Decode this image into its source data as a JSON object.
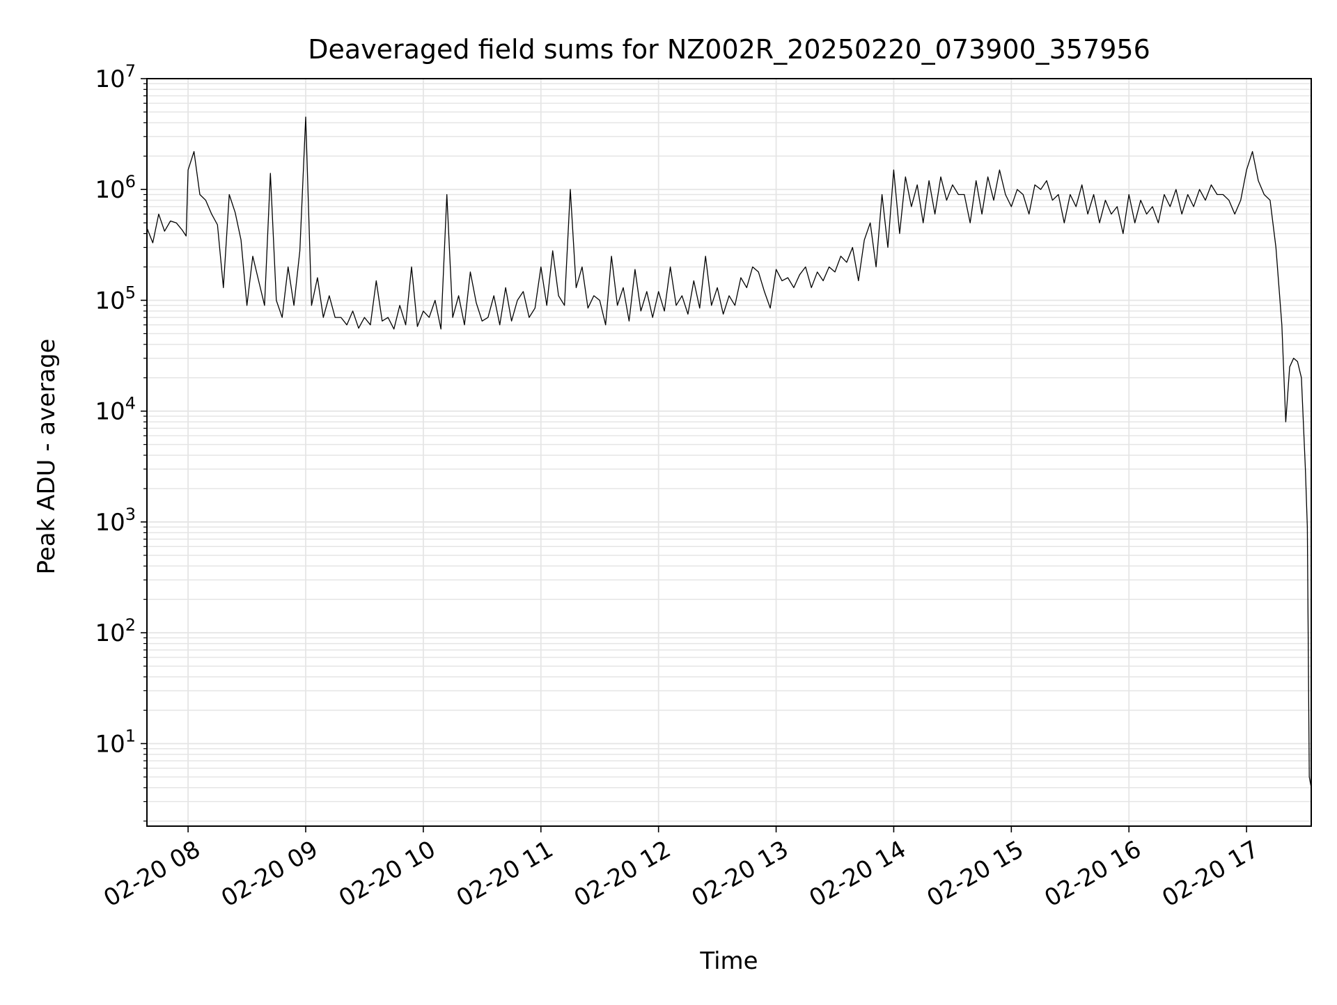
{
  "chart_data": {
    "type": "line",
    "title": "Deaveraged field sums for NZ002R_20250220_073900_357956",
    "xlabel": "Time",
    "ylabel": "Peak ADU - average",
    "y_scale": "log",
    "xlim": [
      "2025-02-20 07:39",
      "2025-02-20 17:33"
    ],
    "ylim": [
      1.8,
      10000000
    ],
    "x_ticks": [
      {
        "value": "2025-02-20 08:00",
        "label": "02-20 08"
      },
      {
        "value": "2025-02-20 09:00",
        "label": "02-20 09"
      },
      {
        "value": "2025-02-20 10:00",
        "label": "02-20 10"
      },
      {
        "value": "2025-02-20 11:00",
        "label": "02-20 11"
      },
      {
        "value": "2025-02-20 12:00",
        "label": "02-20 12"
      },
      {
        "value": "2025-02-20 13:00",
        "label": "02-20 13"
      },
      {
        "value": "2025-02-20 14:00",
        "label": "02-20 14"
      },
      {
        "value": "2025-02-20 15:00",
        "label": "02-20 15"
      },
      {
        "value": "2025-02-20 16:00",
        "label": "02-20 16"
      },
      {
        "value": "2025-02-20 17:00",
        "label": "02-20 17"
      }
    ],
    "y_ticks": [
      {
        "value": 10,
        "base": "10",
        "exp": "1"
      },
      {
        "value": 100,
        "base": "10",
        "exp": "2"
      },
      {
        "value": 1000,
        "base": "10",
        "exp": "3"
      },
      {
        "value": 10000,
        "base": "10",
        "exp": "4"
      },
      {
        "value": 100000,
        "base": "10",
        "exp": "5"
      },
      {
        "value": 1000000,
        "base": "10",
        "exp": "6"
      },
      {
        "value": 10000000,
        "base": "10",
        "exp": "7"
      }
    ],
    "grid": true,
    "line_color": "#000000",
    "grid_color": "#e5e5e5",
    "series": [
      {
        "x": [
          "2025-02-20 07:39",
          "2025-02-20 07:42",
          "2025-02-20 07:45",
          "2025-02-20 07:48",
          "2025-02-20 07:51",
          "2025-02-20 07:54",
          "2025-02-20 07:57",
          "2025-02-20 07:59",
          "2025-02-20 08:00",
          "2025-02-20 08:03",
          "2025-02-20 08:06",
          "2025-02-20 08:09",
          "2025-02-20 08:12",
          "2025-02-20 08:15",
          "2025-02-20 08:18",
          "2025-02-20 08:21",
          "2025-02-20 08:24",
          "2025-02-20 08:27",
          "2025-02-20 08:30",
          "2025-02-20 08:33",
          "2025-02-20 08:36",
          "2025-02-20 08:39",
          "2025-02-20 08:42",
          "2025-02-20 08:45",
          "2025-02-20 08:48",
          "2025-02-20 08:51",
          "2025-02-20 08:54",
          "2025-02-20 08:57",
          "2025-02-20 09:00",
          "2025-02-20 09:03",
          "2025-02-20 09:06",
          "2025-02-20 09:09",
          "2025-02-20 09:12",
          "2025-02-20 09:15",
          "2025-02-20 09:18",
          "2025-02-20 09:21",
          "2025-02-20 09:24",
          "2025-02-20 09:27",
          "2025-02-20 09:30",
          "2025-02-20 09:33",
          "2025-02-20 09:36",
          "2025-02-20 09:39",
          "2025-02-20 09:42",
          "2025-02-20 09:45",
          "2025-02-20 09:48",
          "2025-02-20 09:51",
          "2025-02-20 09:54",
          "2025-02-20 09:57",
          "2025-02-20 10:00",
          "2025-02-20 10:03",
          "2025-02-20 10:06",
          "2025-02-20 10:09",
          "2025-02-20 10:12",
          "2025-02-20 10:15",
          "2025-02-20 10:18",
          "2025-02-20 10:21",
          "2025-02-20 10:24",
          "2025-02-20 10:27",
          "2025-02-20 10:30",
          "2025-02-20 10:33",
          "2025-02-20 10:36",
          "2025-02-20 10:39",
          "2025-02-20 10:42",
          "2025-02-20 10:45",
          "2025-02-20 10:48",
          "2025-02-20 10:51",
          "2025-02-20 10:54",
          "2025-02-20 10:57",
          "2025-02-20 11:00",
          "2025-02-20 11:03",
          "2025-02-20 11:06",
          "2025-02-20 11:09",
          "2025-02-20 11:12",
          "2025-02-20 11:15",
          "2025-02-20 11:18",
          "2025-02-20 11:21",
          "2025-02-20 11:24",
          "2025-02-20 11:27",
          "2025-02-20 11:30",
          "2025-02-20 11:33",
          "2025-02-20 11:36",
          "2025-02-20 11:39",
          "2025-02-20 11:42",
          "2025-02-20 11:45",
          "2025-02-20 11:48",
          "2025-02-20 11:51",
          "2025-02-20 11:54",
          "2025-02-20 11:57",
          "2025-02-20 12:00",
          "2025-02-20 12:03",
          "2025-02-20 12:06",
          "2025-02-20 12:09",
          "2025-02-20 12:12",
          "2025-02-20 12:15",
          "2025-02-20 12:18",
          "2025-02-20 12:21",
          "2025-02-20 12:24",
          "2025-02-20 12:27",
          "2025-02-20 12:30",
          "2025-02-20 12:33",
          "2025-02-20 12:36",
          "2025-02-20 12:39",
          "2025-02-20 12:42",
          "2025-02-20 12:45",
          "2025-02-20 12:48",
          "2025-02-20 12:51",
          "2025-02-20 12:54",
          "2025-02-20 12:57",
          "2025-02-20 13:00",
          "2025-02-20 13:03",
          "2025-02-20 13:06",
          "2025-02-20 13:09",
          "2025-02-20 13:12",
          "2025-02-20 13:15",
          "2025-02-20 13:18",
          "2025-02-20 13:21",
          "2025-02-20 13:24",
          "2025-02-20 13:27",
          "2025-02-20 13:30",
          "2025-02-20 13:33",
          "2025-02-20 13:36",
          "2025-02-20 13:39",
          "2025-02-20 13:42",
          "2025-02-20 13:45",
          "2025-02-20 13:48",
          "2025-02-20 13:51",
          "2025-02-20 13:54",
          "2025-02-20 13:57",
          "2025-02-20 14:00",
          "2025-02-20 14:03",
          "2025-02-20 14:06",
          "2025-02-20 14:09",
          "2025-02-20 14:12",
          "2025-02-20 14:15",
          "2025-02-20 14:18",
          "2025-02-20 14:21",
          "2025-02-20 14:24",
          "2025-02-20 14:27",
          "2025-02-20 14:30",
          "2025-02-20 14:33",
          "2025-02-20 14:36",
          "2025-02-20 14:39",
          "2025-02-20 14:42",
          "2025-02-20 14:45",
          "2025-02-20 14:48",
          "2025-02-20 14:51",
          "2025-02-20 14:54",
          "2025-02-20 14:57",
          "2025-02-20 15:00",
          "2025-02-20 15:03",
          "2025-02-20 15:06",
          "2025-02-20 15:09",
          "2025-02-20 15:12",
          "2025-02-20 15:15",
          "2025-02-20 15:18",
          "2025-02-20 15:21",
          "2025-02-20 15:24",
          "2025-02-20 15:27",
          "2025-02-20 15:30",
          "2025-02-20 15:33",
          "2025-02-20 15:36",
          "2025-02-20 15:39",
          "2025-02-20 15:42",
          "2025-02-20 15:45",
          "2025-02-20 15:48",
          "2025-02-20 15:51",
          "2025-02-20 15:54",
          "2025-02-20 15:57",
          "2025-02-20 16:00",
          "2025-02-20 16:03",
          "2025-02-20 16:06",
          "2025-02-20 16:09",
          "2025-02-20 16:12",
          "2025-02-20 16:15",
          "2025-02-20 16:18",
          "2025-02-20 16:21",
          "2025-02-20 16:24",
          "2025-02-20 16:27",
          "2025-02-20 16:30",
          "2025-02-20 16:33",
          "2025-02-20 16:36",
          "2025-02-20 16:39",
          "2025-02-20 16:42",
          "2025-02-20 16:45",
          "2025-02-20 16:48",
          "2025-02-20 16:51",
          "2025-02-20 16:54",
          "2025-02-20 16:57",
          "2025-02-20 17:00",
          "2025-02-20 17:03",
          "2025-02-20 17:06",
          "2025-02-20 17:09",
          "2025-02-20 17:12",
          "2025-02-20 17:15",
          "2025-02-20 17:18",
          "2025-02-20 17:20",
          "2025-02-20 17:22",
          "2025-02-20 17:24",
          "2025-02-20 17:26",
          "2025-02-20 17:28",
          "2025-02-20 17:30",
          "2025-02-20 17:31",
          "2025-02-20 17:32",
          "2025-02-20 17:33"
        ],
        "y": [
          450000,
          330000,
          600000,
          420000,
          520000,
          500000,
          430000,
          380000,
          1500000,
          2200000,
          900000,
          800000,
          600000,
          480000,
          130000,
          900000,
          620000,
          350000,
          90000,
          250000,
          150000,
          90000,
          1400000,
          100000,
          70000,
          200000,
          90000,
          280000,
          4500000,
          90000,
          160000,
          70000,
          110000,
          70000,
          70000,
          60000,
          80000,
          56000,
          70000,
          60000,
          150000,
          65000,
          70000,
          55000,
          90000,
          60000,
          200000,
          58000,
          80000,
          70000,
          100000,
          55000,
          900000,
          70000,
          110000,
          60000,
          180000,
          95000,
          65000,
          70000,
          110000,
          60000,
          130000,
          65000,
          100000,
          120000,
          70000,
          85000,
          200000,
          90000,
          280000,
          110000,
          90000,
          1000000,
          130000,
          200000,
          85000,
          110000,
          100000,
          60000,
          250000,
          90000,
          130000,
          65000,
          190000,
          80000,
          120000,
          70000,
          120000,
          80000,
          200000,
          90000,
          110000,
          75000,
          150000,
          85000,
          250000,
          90000,
          130000,
          75000,
          110000,
          90000,
          160000,
          130000,
          200000,
          180000,
          120000,
          85000,
          190000,
          150000,
          160000,
          130000,
          170000,
          200000,
          130000,
          180000,
          150000,
          200000,
          180000,
          250000,
          220000,
          300000,
          150000,
          350000,
          500000,
          200000,
          900000,
          300000,
          1500000,
          400000,
          1300000,
          700000,
          1100000,
          500000,
          1200000,
          600000,
          1300000,
          800000,
          1100000,
          900000,
          900000,
          500000,
          1200000,
          600000,
          1300000,
          800000,
          1500000,
          900000,
          700000,
          1000000,
          900000,
          600000,
          1100000,
          1000000,
          1200000,
          800000,
          900000,
          500000,
          900000,
          700000,
          1100000,
          600000,
          900000,
          500000,
          800000,
          600000,
          700000,
          400000,
          900000,
          500000,
          800000,
          600000,
          700000,
          500000,
          900000,
          700000,
          1000000,
          600000,
          900000,
          700000,
          1000000,
          800000,
          1100000,
          900000,
          900000,
          800000,
          600000,
          800000,
          1500000,
          2200000,
          1200000,
          900000,
          800000,
          300000,
          60000,
          8000,
          25000,
          30000,
          28000,
          20000,
          3000,
          900,
          5,
          4
        ]
      }
    ]
  }
}
